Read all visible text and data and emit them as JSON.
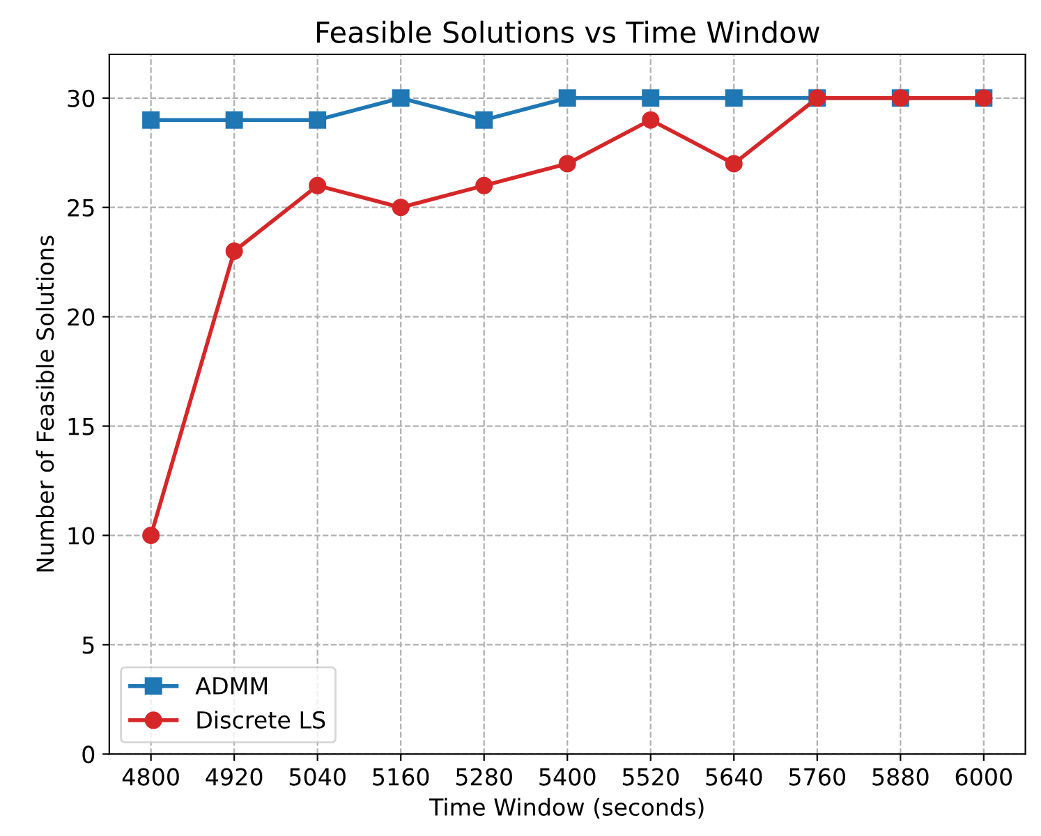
{
  "chart_data": {
    "type": "line",
    "title": "Feasible Solutions vs Time Window",
    "xlabel": "Time Window (seconds)",
    "ylabel": "Number of Feasible Solutions",
    "x": [
      4800,
      4920,
      5040,
      5160,
      5280,
      5400,
      5520,
      5640,
      5760,
      5880,
      6000
    ],
    "series": [
      {
        "name": "ADMM",
        "color": "#1f77b4",
        "marker": "square",
        "values": [
          29,
          29,
          29,
          30,
          29,
          30,
          30,
          30,
          30,
          30,
          30
        ]
      },
      {
        "name": "Discrete LS",
        "color": "#d62728",
        "marker": "circle",
        "values": [
          10,
          23,
          26,
          25,
          26,
          27,
          29,
          27,
          30,
          30,
          30
        ]
      }
    ],
    "xlim": [
      4740,
      6060
    ],
    "xticks": [
      4800,
      4920,
      5040,
      5160,
      5280,
      5400,
      5520,
      5640,
      5760,
      5880,
      6000
    ],
    "ylim": [
      0,
      32
    ],
    "yticks": [
      0,
      5,
      10,
      15,
      20,
      25,
      30
    ],
    "grid": true,
    "legend": "bottom left",
    "line_style": "solid"
  }
}
